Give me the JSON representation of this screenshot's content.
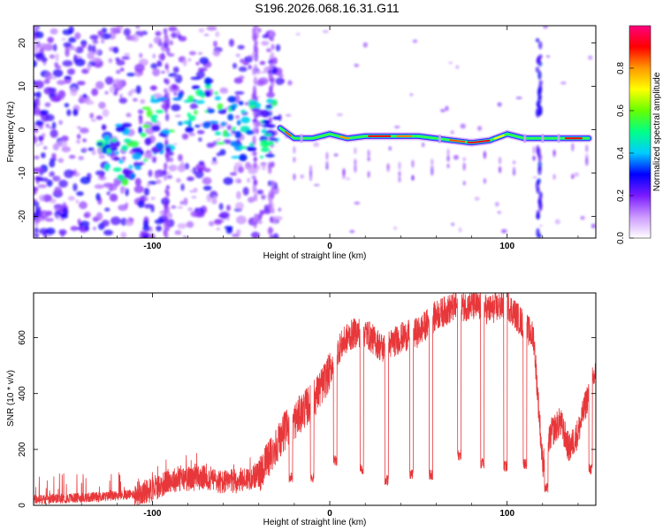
{
  "title": "S196.2026.068.16.31.G11",
  "chart_data": [
    {
      "type": "heatmap",
      "title": "",
      "xlabel": "Height of straight line (km)",
      "ylabel": "Frequency (Hz)",
      "xlim": [
        -167,
        150
      ],
      "ylim": [
        -25,
        24
      ],
      "xticks": [
        -100,
        0,
        100
      ],
      "yticks": [
        20,
        10,
        0,
        -10,
        -20
      ],
      "ridge": {
        "x": [
          -128,
          -115,
          -100,
          -90,
          -80,
          -70,
          -60,
          -50,
          -40,
          -30,
          -20,
          -10,
          0,
          10,
          20,
          30,
          40,
          50,
          60,
          70,
          80,
          90,
          100,
          110,
          120,
          130,
          145
        ],
        "y": [
          -5,
          -6,
          2,
          -1,
          4,
          6,
          1,
          0,
          0,
          1,
          -2,
          -2,
          -1,
          -2,
          -1.5,
          -1.5,
          -1.5,
          -1.5,
          -2,
          -2.5,
          -3,
          -2.5,
          -1,
          -2,
          -2,
          -2,
          -2
        ]
      },
      "colorbar": {
        "label": "Normalized spectral amplitude",
        "range": [
          0,
          1
        ],
        "ticks": [
          "0.0",
          "0.2",
          "0.4",
          "0.6",
          "0.8"
        ],
        "colors": [
          "#ffffff",
          "#cc99ff",
          "#7a1bff",
          "#0000ff",
          "#00ccff",
          "#00ff88",
          "#66ff00",
          "#ffff00",
          "#ff9900",
          "#ff0000",
          "#ff0080"
        ]
      }
    },
    {
      "type": "line",
      "title": "",
      "xlabel": "Height of straight line (km)",
      "ylabel": "SNR (10 * v/v)",
      "xlim": [
        -167,
        150
      ],
      "ylim": [
        0,
        760
      ],
      "xticks": [
        -100,
        0,
        100
      ],
      "yticks": [
        0,
        200,
        400,
        600
      ],
      "color": "#e8373a",
      "series": [
        {
          "name": "SNR",
          "x": [
            -167,
            -150,
            -130,
            -110,
            -100,
            -90,
            -80,
            -70,
            -60,
            -50,
            -40,
            -35,
            -30,
            -25,
            -20,
            -15,
            -10,
            -5,
            0,
            5,
            10,
            15,
            20,
            30,
            40,
            50,
            60,
            70,
            80,
            90,
            100,
            110,
            115,
            120,
            125,
            130,
            135,
            140,
            145,
            150
          ],
          "values": [
            20,
            25,
            30,
            40,
            55,
            90,
            95,
            100,
            80,
            90,
            110,
            160,
            220,
            270,
            300,
            340,
            370,
            420,
            480,
            560,
            600,
            620,
            620,
            560,
            600,
            620,
            680,
            710,
            715,
            700,
            720,
            640,
            600,
            150,
            260,
            300,
            200,
            260,
            380,
            480
          ]
        }
      ],
      "dips": [
        {
          "x": -22,
          "y": 80
        },
        {
          "x": -10,
          "y": 80
        },
        {
          "x": 3,
          "y": 140
        },
        {
          "x": 18,
          "y": 110
        },
        {
          "x": 32,
          "y": 70
        },
        {
          "x": 46,
          "y": 90
        },
        {
          "x": 57,
          "y": 90
        },
        {
          "x": 73,
          "y": 160
        },
        {
          "x": 86,
          "y": 130
        },
        {
          "x": 99,
          "y": 120
        },
        {
          "x": 110,
          "y": 130
        },
        {
          "x": 122,
          "y": 40
        },
        {
          "x": 147,
          "y": 110
        }
      ]
    }
  ]
}
